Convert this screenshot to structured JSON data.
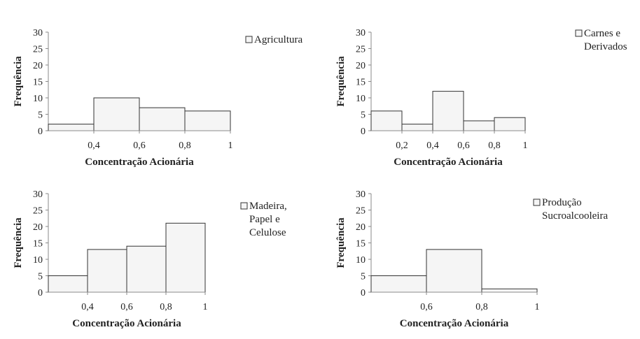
{
  "chart_data": [
    {
      "type": "bar",
      "legend": [
        "Agricultura"
      ],
      "xlabel": "Concentração Acionária",
      "ylabel": "Frequência",
      "yticks": [
        "0",
        "5",
        "10",
        "15",
        "20",
        "25",
        "30"
      ],
      "ylim": [
        0,
        30
      ],
      "xlim": [
        0.2,
        1
      ],
      "xticks": [
        {
          "value": 0.4,
          "label": "0,4"
        },
        {
          "value": 0.6,
          "label": "0,6"
        },
        {
          "value": 0.8,
          "label": "0,8"
        },
        {
          "value": 1,
          "label": "1"
        }
      ],
      "bins": [
        {
          "x0": 0.2,
          "x1": 0.4,
          "count": 2
        },
        {
          "x0": 0.4,
          "x1": 0.6,
          "count": 10
        },
        {
          "x0": 0.6,
          "x1": 0.8,
          "count": 7
        },
        {
          "x0": 0.8,
          "x1": 1.0,
          "count": 6
        }
      ]
    },
    {
      "type": "bar",
      "legend": [
        "Carnes e",
        "Derivados"
      ],
      "xlabel": "Concentração Acionária",
      "ylabel": "Frequência",
      "yticks": [
        "0",
        "5",
        "10",
        "15",
        "20",
        "25",
        "30"
      ],
      "ylim": [
        0,
        30
      ],
      "xlim": [
        0,
        1
      ],
      "xticks": [
        {
          "value": 0.2,
          "label": "0,2"
        },
        {
          "value": 0.4,
          "label": "0,4"
        },
        {
          "value": 0.6,
          "label": "0,6"
        },
        {
          "value": 0.8,
          "label": "0,8"
        },
        {
          "value": 1,
          "label": "1"
        }
      ],
      "bins": [
        {
          "x0": 0.0,
          "x1": 0.2,
          "count": 6
        },
        {
          "x0": 0.2,
          "x1": 0.4,
          "count": 2
        },
        {
          "x0": 0.4,
          "x1": 0.6,
          "count": 12
        },
        {
          "x0": 0.6,
          "x1": 0.8,
          "count": 3
        },
        {
          "x0": 0.8,
          "x1": 1.0,
          "count": 4
        }
      ]
    },
    {
      "type": "bar",
      "legend": [
        "Madeira,",
        "Papel e",
        "Celulose"
      ],
      "xlabel": "Concentração Acionária",
      "ylabel": "Frequência",
      "yticks": [
        "0",
        "5",
        "10",
        "15",
        "20",
        "25",
        "30"
      ],
      "ylim": [
        0,
        30
      ],
      "xlim": [
        0.2,
        1
      ],
      "xticks": [
        {
          "value": 0.4,
          "label": "0,4"
        },
        {
          "value": 0.6,
          "label": "0,6"
        },
        {
          "value": 0.8,
          "label": "0,8"
        },
        {
          "value": 1,
          "label": "1"
        }
      ],
      "bins": [
        {
          "x0": 0.2,
          "x1": 0.4,
          "count": 5
        },
        {
          "x0": 0.4,
          "x1": 0.6,
          "count": 13
        },
        {
          "x0": 0.6,
          "x1": 0.8,
          "count": 14
        },
        {
          "x0": 0.8,
          "x1": 1.0,
          "count": 21
        }
      ]
    },
    {
      "type": "bar",
      "legend": [
        "Produção",
        "Sucroalcooleira"
      ],
      "xlabel": "Concentração Acionária",
      "ylabel": "Frequência",
      "yticks": [
        "0",
        "5",
        "10",
        "15",
        "20",
        "25",
        "30"
      ],
      "ylim": [
        0,
        30
      ],
      "xlim": [
        0.4,
        1
      ],
      "xticks": [
        {
          "value": 0.6,
          "label": "0,6"
        },
        {
          "value": 0.8,
          "label": "0,8"
        },
        {
          "value": 1,
          "label": "1"
        }
      ],
      "bins": [
        {
          "x0": 0.4,
          "x1": 0.6,
          "count": 5
        },
        {
          "x0": 0.6,
          "x1": 0.8,
          "count": 13
        },
        {
          "x0": 0.8,
          "x1": 1.0,
          "count": 1
        }
      ]
    }
  ]
}
